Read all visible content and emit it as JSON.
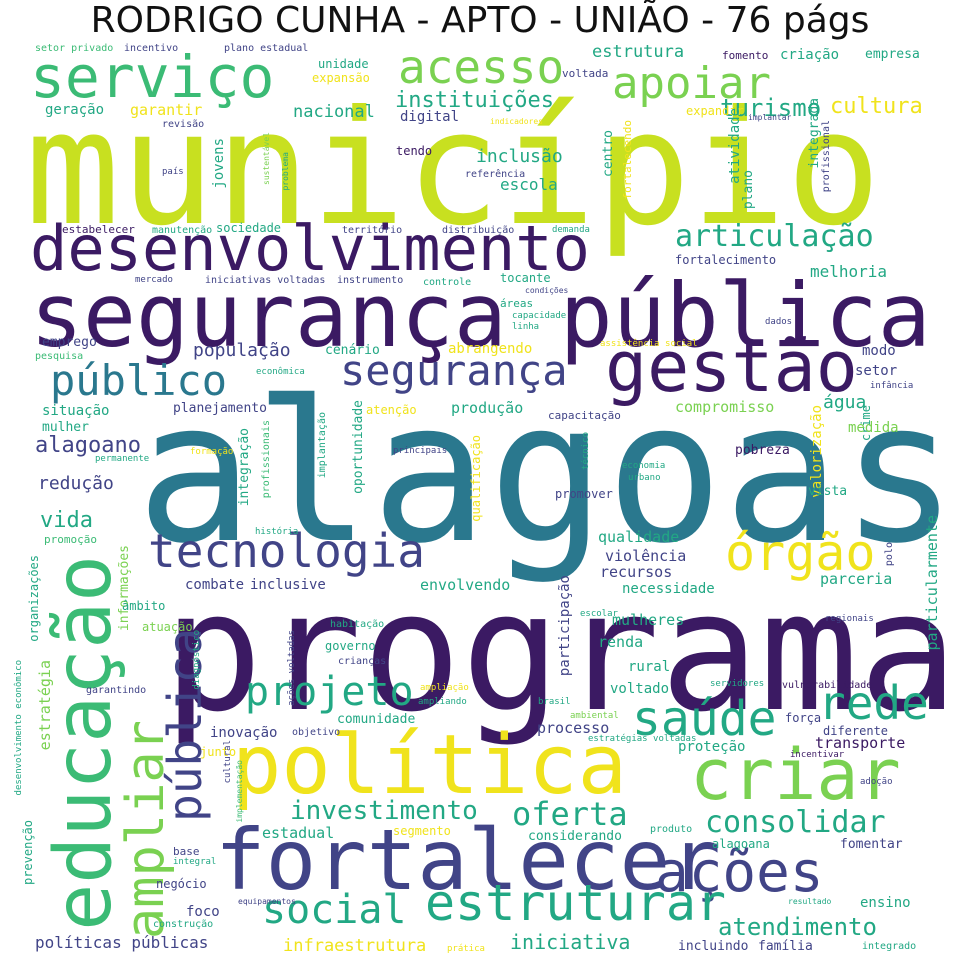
{
  "title": "RODRIGO CUNHA - APTO - UNIÃO - 76 págs",
  "palette": {
    "lime": "#c8e020",
    "yellow": "#f0e31c",
    "green_light": "#7ad151",
    "green": "#3bbb75",
    "teal": "#22a884",
    "blue": "#2a788e",
    "indigo": "#414487",
    "purple": "#3b1a63"
  },
  "words": [
    "município",
    "alagoas",
    "programa",
    "segurança pública",
    "desenvolvimento",
    "fortalecer",
    "política",
    "educação",
    "gestão",
    "serviço",
    "apoiar",
    "acesso",
    "criar",
    "tecnologia",
    "órgão",
    "rede",
    "saúde",
    "projeto",
    "público",
    "segurança",
    "ações",
    "social",
    "estruturar",
    "ampliar",
    "pública",
    "articulação",
    "turismo",
    "cultura",
    "consolidar",
    "oferta",
    "investimento",
    "instituições",
    "atendimento",
    "iniciativa",
    "políticas públicas",
    "infraestrutura",
    "alagoano",
    "vida",
    "redução",
    "estrutura",
    "população",
    "nacional",
    "inclusão",
    "escola",
    "produção",
    "compromisso",
    "água",
    "melhoria",
    "fortalecimento",
    "planejamento",
    "situação",
    "mulher",
    "combate",
    "inclusive",
    "envolvendo",
    "recursos",
    "parceria",
    "qualidade",
    "violência",
    "mulheres",
    "renda",
    "rural",
    "voltado",
    "processo",
    "comunidade",
    "inovação",
    "transporte",
    "proteção",
    "estadual",
    "considerando",
    "ensino",
    "foco",
    "negócio",
    "família",
    "incluindo",
    "criação",
    "empresa",
    "fomento",
    "expandir",
    "voltada",
    "unidade",
    "expansão",
    "geração",
    "garantir",
    "digital",
    "tendo",
    "centro",
    "atividade",
    "plano",
    "integrada",
    "profissional",
    "fortalecendo",
    "estabelecer",
    "sociedade",
    "território",
    "distribuição",
    "manutenção",
    "demanda",
    "mercado",
    "iniciativas voltadas",
    "instrumento",
    "controle",
    "tocante",
    "áreas",
    "capacidade",
    "linha",
    "emprego",
    "cenário",
    "abrangendo",
    "modo",
    "setor",
    "infância",
    "atenção",
    "capacitação",
    "valorização",
    "crime",
    "medida",
    "pobreza",
    "vista",
    "promover",
    "oportunidade",
    "qualificação",
    "integração",
    "profissionais",
    "implantação",
    "principais",
    "formação",
    "permanente",
    "técnico",
    "economia",
    "urbano",
    "estratégia",
    "informações",
    "organizações",
    "promoção",
    "âmbito",
    "atuação",
    "habitação",
    "governo",
    "crianças",
    "ações voltadas",
    "diagnóstico",
    "desenvolvimento econômico",
    "garantindo",
    "ampliação",
    "ampliando",
    "brasil",
    "ambiental",
    "servidores",
    "vulnerabilidade",
    "força",
    "diferente",
    "estratégias voltadas",
    "objetivo",
    "junto",
    "cultural",
    "implementação",
    "incentivar",
    "adoção",
    "produto",
    "segmento",
    "alagoana",
    "fomentar",
    "base",
    "integral",
    "equipamentos",
    "construção",
    "resultado",
    "prática",
    "integrado",
    "prevenção",
    "regionais",
    "polo",
    "particularmente",
    "necessidade",
    "participação",
    "escolar",
    "setor privado",
    "incentivo",
    "plano estadual",
    "revisão",
    "indicadores",
    "implantar",
    "país",
    "jovens",
    "problema",
    "sustentável",
    "referência",
    "história",
    "econômica",
    "pesquisa",
    "assistência social",
    "condições",
    "dados"
  ]
}
